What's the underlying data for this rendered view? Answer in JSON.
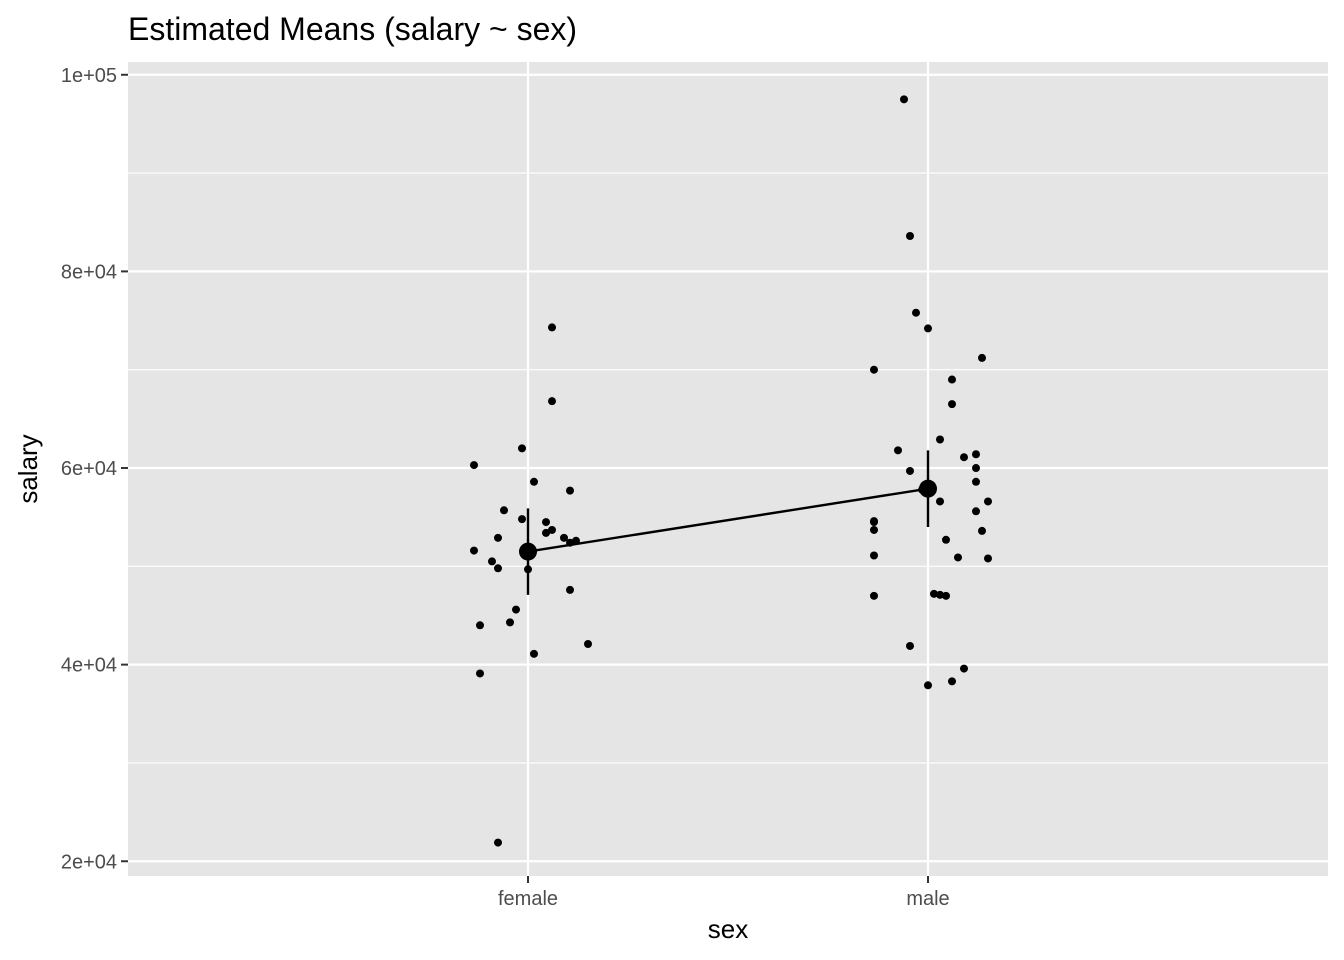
{
  "chart_data": {
    "type": "scatter",
    "title": "Estimated Means (salary ~ sex)",
    "xlabel": "sex",
    "ylabel": "salary",
    "categories": [
      "female",
      "male"
    ],
    "ylim": [
      18500,
      101300
    ],
    "y_ticks": [
      {
        "value": 20000,
        "label": "2e+04"
      },
      {
        "value": 40000,
        "label": "4e+04"
      },
      {
        "value": 60000,
        "label": "6e+04"
      },
      {
        "value": 80000,
        "label": "8e+04"
      },
      {
        "value": 100000,
        "label": "1e+05"
      }
    ],
    "y_minor_ticks": [
      30000,
      50000,
      70000,
      90000
    ],
    "grid": true,
    "background": "#e5e5e5",
    "grid_color": "#ffffff",
    "point_color": "#000000",
    "observations": [
      {
        "category": "female",
        "points": [
          {
            "jitter": -0.09,
            "y": 60300
          },
          {
            "jitter": -0.01,
            "y": 62000
          },
          {
            "jitter": 0.04,
            "y": 74300
          },
          {
            "jitter": 0.04,
            "y": 66800
          },
          {
            "jitter": 0.01,
            "y": 58600
          },
          {
            "jitter": 0.07,
            "y": 57700
          },
          {
            "jitter": -0.04,
            "y": 55700
          },
          {
            "jitter": -0.01,
            "y": 54800
          },
          {
            "jitter": 0.03,
            "y": 54500
          },
          {
            "jitter": 0.04,
            "y": 53700
          },
          {
            "jitter": 0.03,
            "y": 53400
          },
          {
            "jitter": -0.05,
            "y": 52900
          },
          {
            "jitter": 0.06,
            "y": 52900
          },
          {
            "jitter": 0.08,
            "y": 52600
          },
          {
            "jitter": 0.07,
            "y": 52400
          },
          {
            "jitter": -0.09,
            "y": 51600
          },
          {
            "jitter": -0.06,
            "y": 50500
          },
          {
            "jitter": -0.05,
            "y": 49800
          },
          {
            "jitter": 0.0,
            "y": 49700
          },
          {
            "jitter": 0.07,
            "y": 47600
          },
          {
            "jitter": -0.02,
            "y": 45600
          },
          {
            "jitter": -0.03,
            "y": 44300
          },
          {
            "jitter": -0.08,
            "y": 44000
          },
          {
            "jitter": 0.1,
            "y": 42100
          },
          {
            "jitter": 0.01,
            "y": 41100
          },
          {
            "jitter": -0.08,
            "y": 39100
          },
          {
            "jitter": -0.05,
            "y": 21900
          }
        ]
      },
      {
        "category": "male",
        "points": [
          {
            "jitter": -0.04,
            "y": 97500
          },
          {
            "jitter": -0.03,
            "y": 83600
          },
          {
            "jitter": -0.02,
            "y": 75800
          },
          {
            "jitter": 0.0,
            "y": 74200
          },
          {
            "jitter": 0.09,
            "y": 71200
          },
          {
            "jitter": -0.09,
            "y": 70000
          },
          {
            "jitter": 0.04,
            "y": 69000
          },
          {
            "jitter": 0.04,
            "y": 66500
          },
          {
            "jitter": 0.02,
            "y": 62900
          },
          {
            "jitter": -0.05,
            "y": 61800
          },
          {
            "jitter": 0.08,
            "y": 61400
          },
          {
            "jitter": 0.06,
            "y": 61100
          },
          {
            "jitter": 0.08,
            "y": 60000
          },
          {
            "jitter": -0.03,
            "y": 59700
          },
          {
            "jitter": 0.08,
            "y": 58600
          },
          {
            "jitter": -0.01,
            "y": 57800
          },
          {
            "jitter": 0.1,
            "y": 56600
          },
          {
            "jitter": 0.02,
            "y": 56600
          },
          {
            "jitter": 0.08,
            "y": 55600
          },
          {
            "jitter": -0.09,
            "y": 54600
          },
          {
            "jitter": -0.09,
            "y": 54500
          },
          {
            "jitter": -0.09,
            "y": 53700
          },
          {
            "jitter": 0.09,
            "y": 53600
          },
          {
            "jitter": 0.03,
            "y": 52700
          },
          {
            "jitter": -0.09,
            "y": 51100
          },
          {
            "jitter": 0.05,
            "y": 50900
          },
          {
            "jitter": 0.1,
            "y": 50800
          },
          {
            "jitter": 0.01,
            "y": 47200
          },
          {
            "jitter": 0.02,
            "y": 47100
          },
          {
            "jitter": 0.03,
            "y": 47000
          },
          {
            "jitter": -0.09,
            "y": 47000
          },
          {
            "jitter": -0.03,
            "y": 41900
          },
          {
            "jitter": 0.06,
            "y": 39600
          },
          {
            "jitter": 0.04,
            "y": 38300
          },
          {
            "jitter": 0.0,
            "y": 37900
          }
        ]
      }
    ],
    "estimated_means": [
      {
        "category": "female",
        "mean": 51500,
        "ci_low": 47100,
        "ci_high": 55900
      },
      {
        "category": "male",
        "mean": 57900,
        "ci_low": 54000,
        "ci_high": 61800
      }
    ]
  }
}
